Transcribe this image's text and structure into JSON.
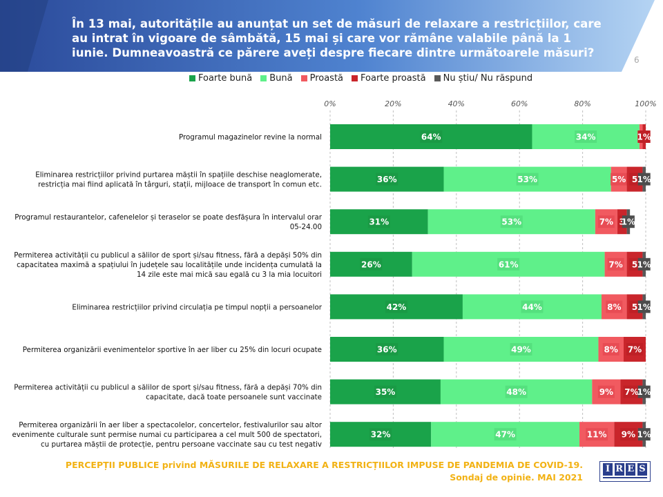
{
  "header": {
    "title": "În 13 mai, autoritățile au anunțat un set de măsuri de relaxare a restricțiilor, care au intrat în vigoare de sâmbătă, 15 mai și care vor rămâne valabile până la 1 iunie. Dumneavoastră ce părere aveți despre fiecare dintre următoarele măsuri?",
    "slide_number": "6"
  },
  "colors": {
    "header_dark": "#2b4a9a",
    "header_light": "#9cc4ee",
    "foarte_buna": "#1aa34a",
    "buna": "#5ff08a",
    "proasta": "#f15a60",
    "foarte_proasta": "#c9252b",
    "nu_stiu": "#595959",
    "footer_text": "#f2b214"
  },
  "chart_data": {
    "type": "bar",
    "orientation": "horizontal",
    "stacked": true,
    "x_ticks": [
      "0%",
      "20%",
      "40%",
      "60%",
      "80%",
      "100%"
    ],
    "xlim": [
      0,
      100
    ],
    "legend_position": "top",
    "series": [
      {
        "name": "Foarte bună",
        "color": "#1aa34a",
        "values": [
          64,
          36,
          31,
          26,
          42,
          36,
          35,
          32
        ],
        "labels": [
          "64%",
          "36%",
          "31%",
          "26%",
          "42%",
          "36%",
          "35%",
          "32%"
        ]
      },
      {
        "name": "Bună",
        "color": "#5ff08a",
        "values": [
          34,
          53,
          53,
          61,
          44,
          49,
          48,
          47
        ],
        "labels": [
          "34%",
          "53%",
          "53%",
          "61%",
          "44%",
          "49%",
          "48%",
          "47%"
        ]
      },
      {
        "name": "Proastă",
        "color": "#f15a60",
        "values": [
          1,
          5,
          7,
          7,
          8,
          8,
          9,
          11
        ],
        "labels": [
          "1",
          "5%",
          "7%",
          "7%",
          "8%",
          "8%",
          "9%",
          "11%"
        ]
      },
      {
        "name": "Foarte proastă",
        "color": "#c9252b",
        "values": [
          1,
          5,
          3,
          5,
          5,
          7,
          7,
          9
        ],
        "labels": [
          "1%",
          "5",
          "3",
          "5",
          "5",
          "7%",
          "7%",
          "9%"
        ]
      },
      {
        "name": "Nu știu/ Nu răspund",
        "color": "#595959",
        "values": [
          0,
          1,
          1,
          1,
          1,
          0,
          1,
          1
        ],
        "labels": [
          "",
          "1%",
          "1%",
          "1%",
          "1%",
          "",
          "1%",
          "1%"
        ]
      }
    ],
    "categories": [
      [
        "Programul magazinelor revine la normal"
      ],
      [
        "Eliminarea  restricțiilor privind purtarea măștii în spațiile deschise neaglomerate,",
        "restricția mai fiind aplicată în târguri, stații, mijloace de transport în comun etc."
      ],
      [
        "Programul restaurantelor, cafenelelor și teraselor se poate desfășura în intervalul orar",
        "05-24.00"
      ],
      [
        "Permiterea activității  cu publicul a sălilor de sport și/sau fitness, fără a depăși 50% din",
        "capacitatea maximă  a spațiului în județele sau localitățile unde incidența cumulată la",
        "14 zile este mai mică sau egală cu 3 la mia locuitori"
      ],
      [
        "Eliminarea  restricțiilor privind circulația pe timpul nopții a persoanelor"
      ],
      [
        "Permiterea organizării evenimentelor sportive în aer liber cu 25% din locuri ocupate"
      ],
      [
        "Permiterea activității  cu publicul a sălilor de sport și/sau fitness, fără a depăși 70% din",
        "capacitate, dacă toate persoanele sunt vaccinate"
      ],
      [
        "Permiterea organizării în aer liber a spectacolelor, concertelor, festivalurilor sau altor",
        "evenimente culturale sunt permise numai cu participarea a cel mult 500 de spectatori,",
        "cu purtarea măștii de protecție, pentru persoane vaccinate sau cu test negativ"
      ]
    ]
  },
  "footer": {
    "line1": "PERCEPȚII PUBLICE privind MĂSURILE DE RELAXARE  A RESTRICȚIILOR IMPUSE  DE PANDEMIA DE COVID-19.",
    "line2": "Sondaj de opinie. MAI 2021",
    "logo_letters": [
      "I",
      "R",
      "E",
      "S"
    ]
  }
}
